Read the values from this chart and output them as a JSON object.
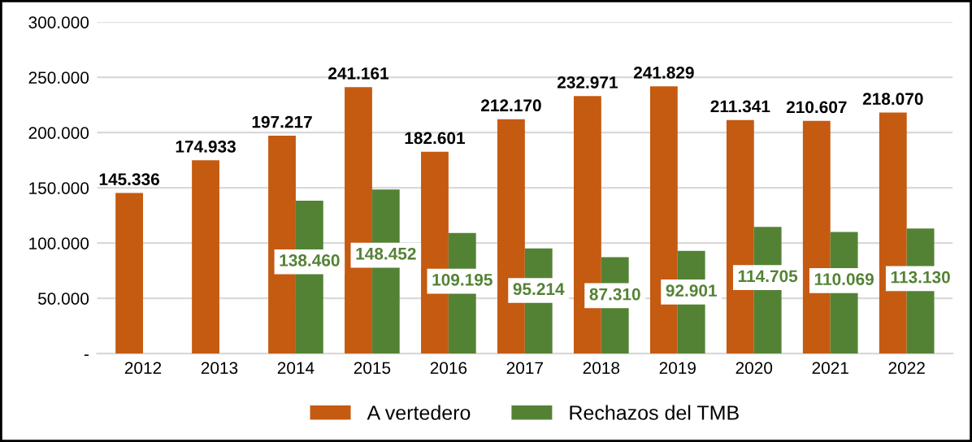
{
  "chart_data": {
    "type": "bar",
    "categories": [
      "2012",
      "2013",
      "2014",
      "2015",
      "2016",
      "2017",
      "2018",
      "2019",
      "2020",
      "2021",
      "2022"
    ],
    "series": [
      {
        "name": "A vertedero",
        "color": "#c55a11",
        "values": [
          145336,
          174933,
          197217,
          241161,
          182601,
          212170,
          232971,
          241829,
          211341,
          210607,
          218070
        ],
        "value_labels": [
          "145.336",
          "174.933",
          "197.217",
          "241.161",
          "182.601",
          "212.170",
          "232.971",
          "241.829",
          "211.341",
          "210.607",
          "218.070"
        ]
      },
      {
        "name": "Rechazos del TMB",
        "color": "#548235",
        "values": [
          null,
          null,
          138460,
          148452,
          109195,
          95214,
          87310,
          92901,
          114705,
          110069,
          113130
        ],
        "value_labels": [
          null,
          null,
          "138.460",
          "148.452",
          "109.195",
          "95.214",
          "87.310",
          "92.901",
          "114.705",
          "110.069",
          "113.130"
        ]
      }
    ],
    "ylim": [
      0,
      300000
    ],
    "yticks": [
      {
        "value": 0,
        "label": "-"
      },
      {
        "value": 50000,
        "label": "50.000"
      },
      {
        "value": 100000,
        "label": "100.000"
      },
      {
        "value": 150000,
        "label": "150.000"
      },
      {
        "value": 200000,
        "label": "200.000"
      },
      {
        "value": 250000,
        "label": "250.000"
      },
      {
        "value": 300000,
        "label": "300.000"
      }
    ],
    "grid": "y",
    "legend": "bottom"
  }
}
